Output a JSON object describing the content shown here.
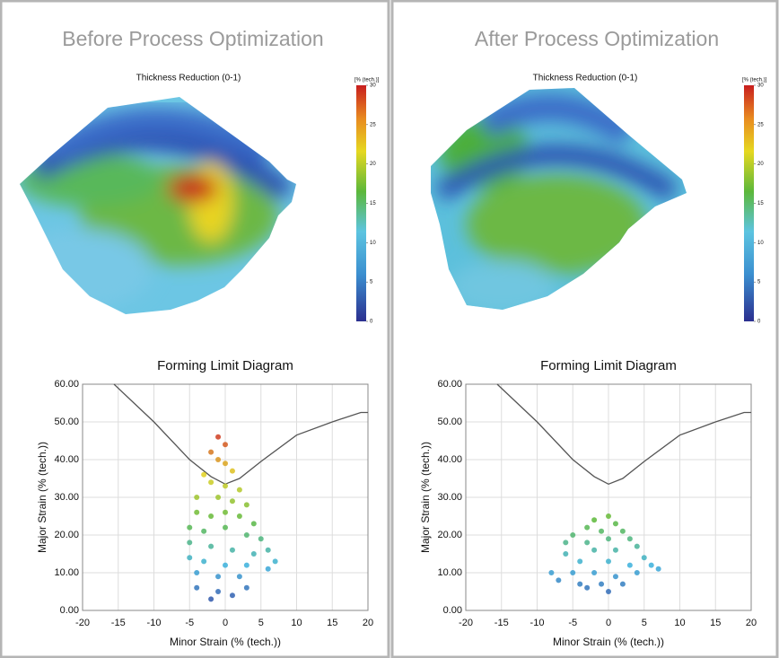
{
  "panels": [
    {
      "title": "Before Process Optimization",
      "map_title": "Thickness Reduction (0-1)",
      "colorbar": {
        "label": "[% (tech.)]",
        "lim": [
          0,
          30
        ],
        "ticks": [
          0,
          5,
          10,
          15,
          20,
          25,
          30
        ]
      }
    },
    {
      "title": "After Process Optimization",
      "map_title": "Thickness Reduction (0-1)",
      "colorbar": {
        "label": "[% (tech.)]",
        "lim": [
          0,
          30
        ],
        "ticks": [
          0,
          5,
          10,
          15,
          20,
          25,
          30
        ]
      }
    }
  ],
  "chart_data": [
    {
      "type": "line",
      "title": "Forming Limit Diagram",
      "xlabel": "Minor Strain (% (tech.))",
      "ylabel": "Major Strain (% (tech.))",
      "xlim": [
        -20,
        20
      ],
      "ylim": [
        0,
        60
      ],
      "xticks": [
        -20,
        -15,
        -10,
        -5,
        0,
        5,
        10,
        15,
        20
      ],
      "yticks": [
        {
          "value": 0,
          "label": "0.00"
        },
        {
          "value": 10,
          "label": "10.00"
        },
        {
          "value": 20,
          "label": "20.00"
        },
        {
          "value": 30,
          "label": "30.00"
        },
        {
          "value": 40,
          "label": "40.00"
        },
        {
          "value": 50,
          "label": "50.00"
        },
        {
          "value": 60,
          "label": "60.00"
        }
      ],
      "grid": true,
      "colormap": [
        "#2b3b9c",
        "#3bb0dc",
        "#5cb83a",
        "#e0d020",
        "#cc2020"
      ],
      "series": [
        {
          "type": "line",
          "color": "#555555",
          "x": [
            -15.6,
            -10,
            -5,
            -2,
            0,
            2,
            5,
            10,
            15,
            19,
            20
          ],
          "values": [
            60,
            50,
            40,
            35.5,
            33.5,
            35,
            39.5,
            46.5,
            50,
            52.5,
            52.5
          ]
        },
        {
          "type": "scatter",
          "x": [
            -1,
            0,
            -2,
            -1,
            0,
            1,
            -3,
            -2,
            0,
            2,
            -4,
            -1,
            1,
            3,
            -4,
            -2,
            0,
            2,
            4,
            -5,
            -3,
            0,
            3,
            5,
            6,
            -5,
            -2,
            1,
            4,
            7,
            -5,
            -3,
            0,
            3,
            6,
            -4,
            -1,
            2,
            -4,
            -1,
            1,
            3,
            -2
          ],
          "values": [
            46,
            44,
            42,
            40,
            39,
            37,
            36,
            34,
            33,
            32,
            30,
            30,
            29,
            28,
            26,
            25,
            26,
            25,
            23,
            22,
            21,
            22,
            20,
            19,
            16,
            18,
            17,
            16,
            15,
            13,
            14,
            13,
            12,
            12,
            11,
            10,
            9,
            9,
            6,
            5,
            4,
            6,
            3
          ]
        }
      ]
    },
    {
      "type": "line",
      "title": "Forming Limit Diagram",
      "xlabel": "Minor Strain (% (tech.))",
      "ylabel": "Major Strain (% (tech.))",
      "xlim": [
        -20,
        20
      ],
      "ylim": [
        0,
        60
      ],
      "xticks": [
        -20,
        -15,
        -10,
        -5,
        0,
        5,
        10,
        15,
        20
      ],
      "yticks": [
        {
          "value": 0,
          "label": "0.00"
        },
        {
          "value": 10,
          "label": "10.00"
        },
        {
          "value": 20,
          "label": "20.00"
        },
        {
          "value": 30,
          "label": "30.00"
        },
        {
          "value": 40,
          "label": "40.00"
        },
        {
          "value": 50,
          "label": "50.00"
        },
        {
          "value": 60,
          "label": "60.00"
        }
      ],
      "grid": true,
      "colormap": [
        "#2b3b9c",
        "#3bb0dc",
        "#5cb83a",
        "#e0d020",
        "#cc2020"
      ],
      "series": [
        {
          "type": "line",
          "color": "#555555",
          "x": [
            -15.6,
            -10,
            -5,
            -2,
            0,
            2,
            5,
            10,
            15,
            19,
            20
          ],
          "values": [
            60,
            50,
            40,
            35.5,
            33.5,
            35,
            39.5,
            46.5,
            50,
            52.5,
            52.5
          ]
        },
        {
          "type": "scatter",
          "x": [
            -2,
            0,
            -3,
            1,
            -5,
            -1,
            2,
            3,
            -6,
            -3,
            0,
            4,
            -6,
            -2,
            1,
            5,
            -4,
            0,
            3,
            6,
            7,
            -8,
            -5,
            -2,
            1,
            4,
            -7,
            -4,
            -1,
            2,
            -3,
            0
          ],
          "values": [
            24,
            25,
            22,
            23,
            20,
            21,
            21,
            19,
            18,
            18,
            19,
            17,
            15,
            16,
            16,
            14,
            13,
            13,
            12,
            12,
            11,
            10,
            10,
            10,
            9,
            10,
            8,
            7,
            7,
            7,
            6,
            5
          ]
        }
      ]
    }
  ]
}
